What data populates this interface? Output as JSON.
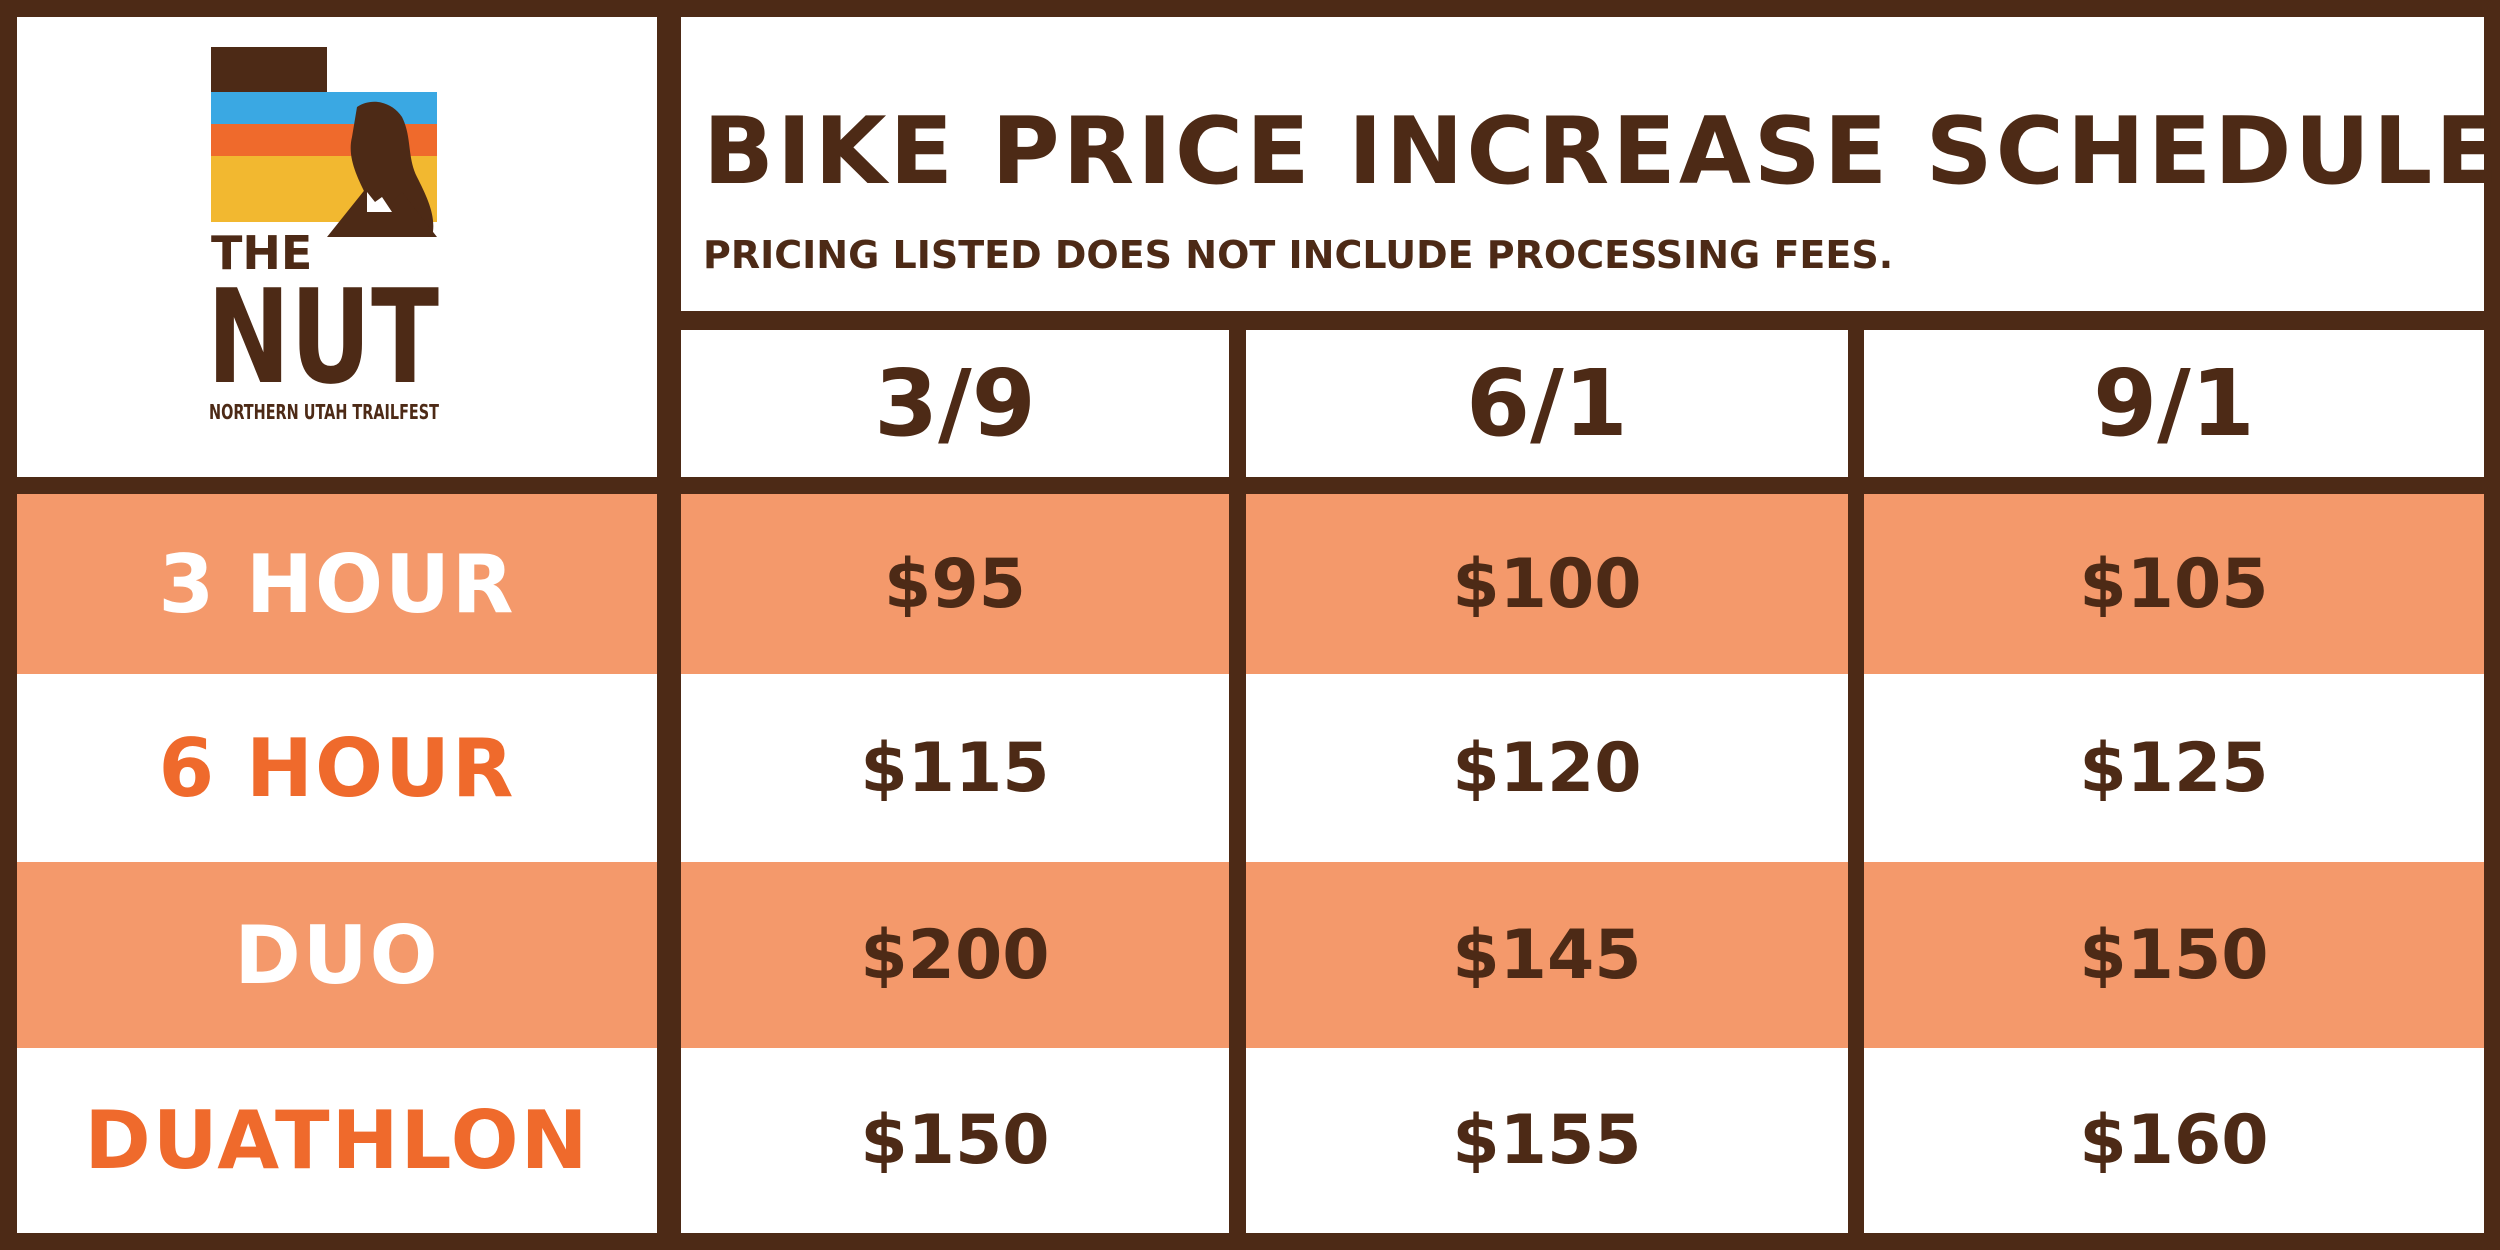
{
  "logo": {
    "the": "THE",
    "nut": "NUT",
    "tagline": "NORTHERN UTAH TRAILFEST",
    "stripe_colors": [
      "#3aa8e3",
      "#ef6a2c",
      "#f2b830"
    ]
  },
  "header": {
    "title": "BIKE PRICE INCREASE SCHEDULE",
    "subtitle": "PRICING LISTED DOES NOT INCLUDE PROCESSING FEES."
  },
  "dates": [
    "3/9",
    "6/1",
    "9/1"
  ],
  "rows": [
    {
      "label": "3 HOUR",
      "prices": [
        "$95",
        "$100",
        "$105"
      ]
    },
    {
      "label": "6 HOUR",
      "prices": [
        "$115",
        "$120",
        "$125"
      ]
    },
    {
      "label": "DUO",
      "prices": [
        "$200",
        "$145",
        "$150"
      ]
    },
    {
      "label": "DUATHLON",
      "prices": [
        "$150",
        "$155",
        "$160"
      ]
    }
  ],
  "colors": {
    "brown": "#4d2a16",
    "peach": "#f4996b",
    "orange": "#ef6a2c",
    "white": "#ffffff"
  }
}
